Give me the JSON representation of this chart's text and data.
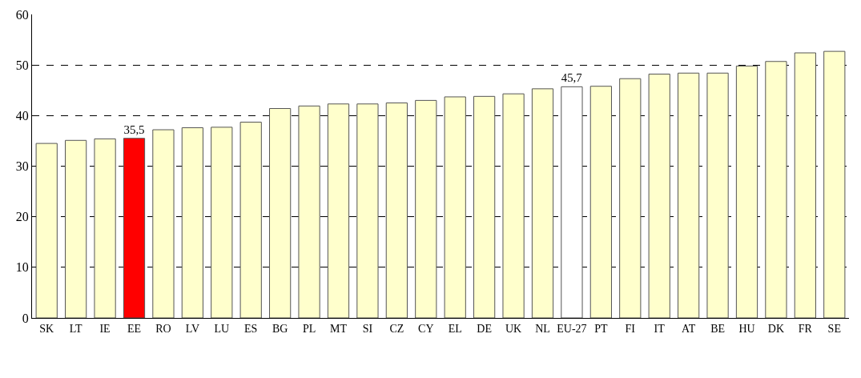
{
  "chart_data": {
    "type": "bar",
    "categories": [
      "SK",
      "LT",
      "IE",
      "EE",
      "RO",
      "LV",
      "LU",
      "ES",
      "BG",
      "PL",
      "MT",
      "SI",
      "CZ",
      "CY",
      "EL",
      "DE",
      "UK",
      "NL",
      "EU-27",
      "PT",
      "FI",
      "IT",
      "AT",
      "BE",
      "HU",
      "DK",
      "FR",
      "SE"
    ],
    "values": [
      34.5,
      35.1,
      35.4,
      35.5,
      37.2,
      37.6,
      37.7,
      38.7,
      41.4,
      41.9,
      42.3,
      42.3,
      42.5,
      43.0,
      43.7,
      43.8,
      44.3,
      45.3,
      45.7,
      45.8,
      47.3,
      48.2,
      48.4,
      48.4,
      49.8,
      50.7,
      52.4,
      52.7
    ],
    "colors": [
      "#ffffcc",
      "#ffffcc",
      "#ffffcc",
      "#ff0000",
      "#ffffcc",
      "#ffffcc",
      "#ffffcc",
      "#ffffcc",
      "#ffffcc",
      "#ffffcc",
      "#ffffcc",
      "#ffffcc",
      "#ffffcc",
      "#ffffcc",
      "#ffffcc",
      "#ffffcc",
      "#ffffcc",
      "#ffffcc",
      "#ffffff",
      "#ffffcc",
      "#ffffcc",
      "#ffffcc",
      "#ffffcc",
      "#ffffcc",
      "#ffffcc",
      "#ffffcc",
      "#ffffcc",
      "#ffffcc"
    ],
    "value_labels": [
      null,
      null,
      null,
      "35,5",
      null,
      null,
      null,
      null,
      null,
      null,
      null,
      null,
      null,
      null,
      null,
      null,
      null,
      null,
      "45,7",
      null,
      null,
      null,
      null,
      null,
      null,
      null,
      null,
      null
    ],
    "ylim": [
      0,
      60
    ],
    "yticks": [
      0,
      10,
      20,
      30,
      40,
      50,
      60
    ],
    "grid": "y",
    "line_style": "dashed"
  }
}
